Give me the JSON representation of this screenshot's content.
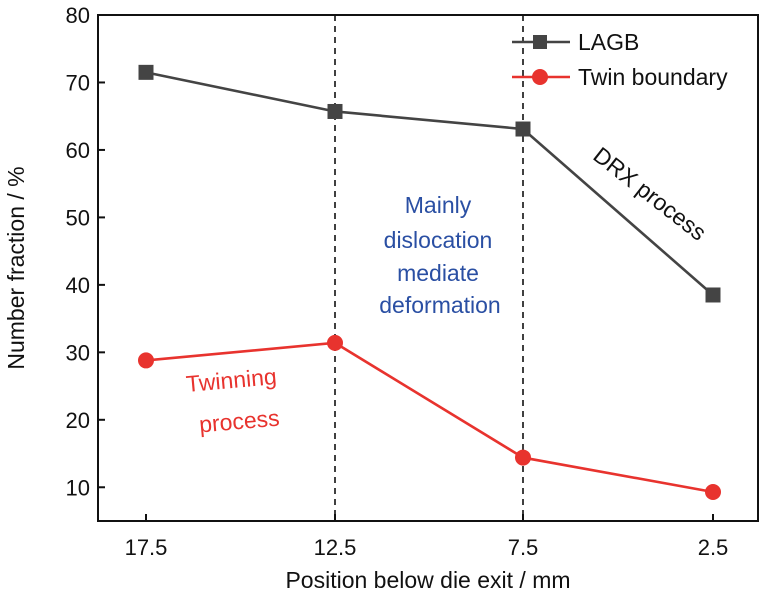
{
  "colors": {
    "axis": "#111111",
    "lagb": "#444444",
    "twin": "#e8332e",
    "blue_text": "#2a4fa3",
    "red_text": "#e8332e",
    "black_text": "#111111",
    "divider": "#111111"
  },
  "chart_data": {
    "type": "line",
    "title": "",
    "xlabel": "Position below die exit / mm",
    "ylabel": "Number fraction / %",
    "categories": [
      "17.5",
      "12.5",
      "7.5",
      "2.5"
    ],
    "ylim": [
      5,
      80
    ],
    "yticks": [
      10,
      20,
      30,
      40,
      50,
      60,
      70,
      80
    ],
    "ytick_labels": [
      "10",
      "20",
      "30",
      "40",
      "50",
      "60",
      "70",
      "80"
    ],
    "grid": false,
    "legend_position": "top-right",
    "series": [
      {
        "name": "LAGB",
        "marker": "square",
        "color": "#444444",
        "values": [
          71.5,
          65.7,
          63.1,
          38.5
        ]
      },
      {
        "name": "Twin boundary",
        "marker": "circle",
        "color": "#e8332e",
        "values": [
          28.8,
          31.4,
          14.4,
          9.3
        ]
      }
    ],
    "dividers_after_categories": [
      "12.5",
      "7.5"
    ],
    "annotations": {
      "mid": [
        "Mainly",
        "dislocation",
        "mediate",
        "deformation"
      ],
      "twin": [
        "Twinning",
        "process"
      ],
      "drx": "DRX process"
    }
  }
}
